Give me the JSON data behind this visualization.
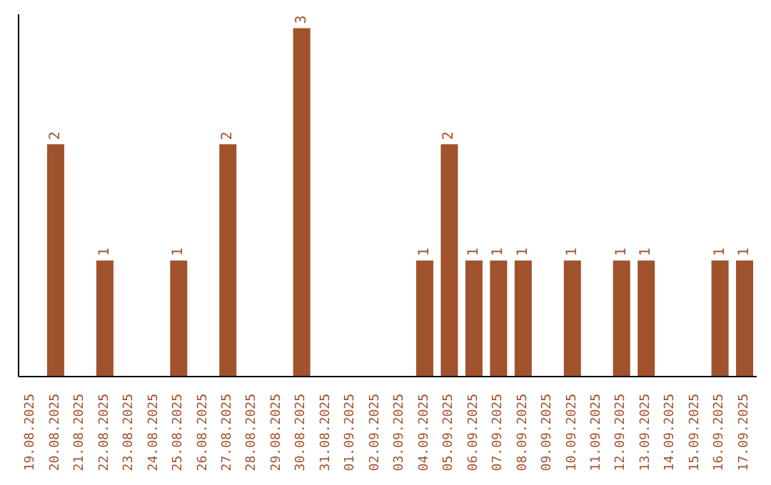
{
  "chart_data": {
    "type": "bar",
    "categories": [
      "19.08.2025",
      "20.08.2025",
      "21.08.2025",
      "22.08.2025",
      "23.08.2025",
      "24.08.2025",
      "25.08.2025",
      "26.08.2025",
      "27.08.2025",
      "28.08.2025",
      "29.08.2025",
      "30.08.2025",
      "31.08.2025",
      "01.09.2025",
      "02.09.2025",
      "03.09.2025",
      "04.09.2025",
      "05.09.2025",
      "06.09.2025",
      "07.09.2025",
      "08.09.2025",
      "09.09.2025",
      "10.09.2025",
      "11.09.2025",
      "12.09.2025",
      "13.09.2025",
      "14.09.2025",
      "15.09.2025",
      "16.09.2025",
      "17.09.2025"
    ],
    "values": [
      0,
      2,
      0,
      1,
      0,
      0,
      1,
      0,
      2,
      0,
      0,
      3,
      0,
      0,
      0,
      0,
      1,
      2,
      1,
      1,
      1,
      0,
      1,
      0,
      1,
      1,
      0,
      0,
      1,
      1
    ],
    "value_labels": [
      null,
      "2",
      null,
      "1",
      null,
      null,
      "1",
      null,
      "2",
      null,
      null,
      "3",
      null,
      null,
      null,
      null,
      "1",
      "2",
      "1",
      "1",
      "1",
      null,
      "1",
      null,
      "1",
      "1",
      null,
      null,
      "1",
      "1"
    ],
    "color": "#a0522d",
    "tick_labels": "x",
    "grid": false,
    "legend": false
  }
}
